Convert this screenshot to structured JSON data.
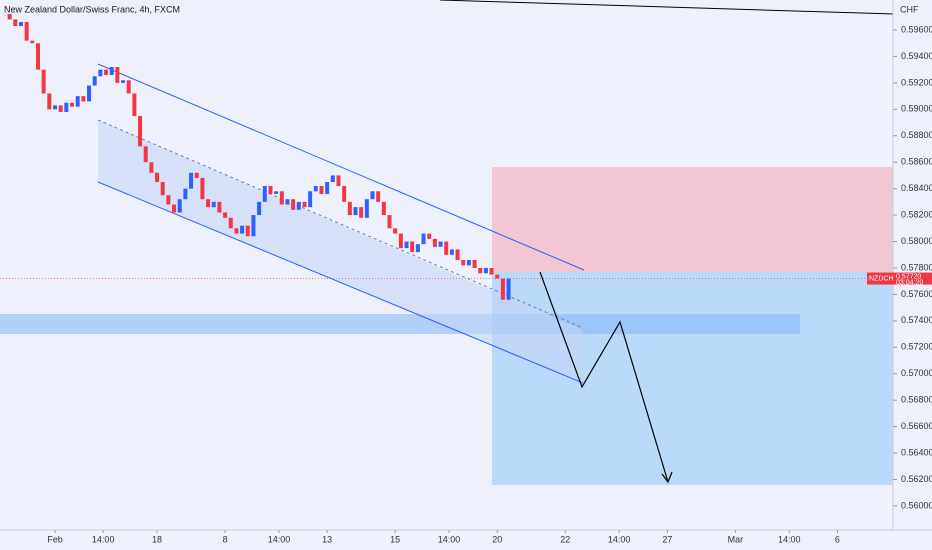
{
  "chart_data": {
    "type": "candlestick",
    "title": "New Zealand Dollar/Swiss Franc, 4h, FXCM",
    "currency": "CHF",
    "symbol": "NZDCHF",
    "last_price": {
      "value": 0.5772,
      "label": "0.57720"
    },
    "countdown": "03:04:20",
    "up_color": "#2962ff",
    "down_color": "#f23645",
    "x": [
      -8,
      -7,
      -6,
      -5,
      -4,
      -3,
      -2,
      -1,
      0,
      1,
      2,
      3,
      4,
      5,
      6,
      7,
      8,
      9,
      10,
      11,
      12,
      13,
      14,
      15,
      16,
      17,
      18,
      19,
      20,
      21,
      22,
      23,
      24,
      25,
      26,
      27,
      28,
      29,
      30,
      31,
      32,
      33,
      34,
      35,
      36,
      37,
      38,
      39,
      40,
      41,
      42,
      43,
      44,
      45,
      46,
      47,
      48,
      49,
      50,
      51,
      52,
      53,
      54,
      55,
      56,
      57,
      58,
      59,
      60,
      61,
      62,
      63,
      64,
      65,
      66,
      67,
      68,
      69,
      70,
      71,
      72,
      73,
      74,
      75,
      76,
      77,
      78,
      79,
      80
    ],
    "open": [
      0.5972,
      0.5968,
      0.5963,
      0.5966,
      0.5952,
      0.595,
      0.593,
      0.5912,
      0.59,
      0.5903,
      0.5898,
      0.5905,
      0.5902,
      0.591,
      0.5906,
      0.5918,
      0.5925,
      0.593,
      0.5926,
      0.5932,
      0.592,
      0.5922,
      0.5912,
      0.5895,
      0.5872,
      0.586,
      0.5852,
      0.5845,
      0.5835,
      0.5828,
      0.5822,
      0.5832,
      0.584,
      0.5852,
      0.5848,
      0.5832,
      0.5826,
      0.583,
      0.5822,
      0.5818,
      0.581,
      0.5806,
      0.5812,
      0.5804,
      0.582,
      0.583,
      0.5842,
      0.5836,
      0.5838,
      0.5828,
      0.5832,
      0.5824,
      0.583,
      0.5826,
      0.5838,
      0.5842,
      0.5836,
      0.5845,
      0.585,
      0.5842,
      0.583,
      0.582,
      0.5826,
      0.5818,
      0.5832,
      0.5838,
      0.583,
      0.582,
      0.581,
      0.5806,
      0.5795,
      0.58,
      0.5792,
      0.5798,
      0.5806,
      0.5802,
      0.5796,
      0.58,
      0.579,
      0.5794,
      0.5786,
      0.5782,
      0.5786,
      0.578,
      0.5776,
      0.578,
      0.5775,
      0.5772,
      0.5756
    ],
    "close": [
      0.5968,
      0.5963,
      0.5966,
      0.5952,
      0.595,
      0.593,
      0.5912,
      0.59,
      0.5903,
      0.5898,
      0.5905,
      0.5902,
      0.591,
      0.5906,
      0.5918,
      0.5925,
      0.593,
      0.5926,
      0.5932,
      0.592,
      0.5922,
      0.5912,
      0.5895,
      0.5872,
      0.586,
      0.5852,
      0.5845,
      0.5835,
      0.5828,
      0.5822,
      0.5832,
      0.584,
      0.5852,
      0.5848,
      0.5832,
      0.5826,
      0.583,
      0.5822,
      0.5818,
      0.581,
      0.5806,
      0.5812,
      0.5804,
      0.582,
      0.583,
      0.5842,
      0.5836,
      0.5838,
      0.5828,
      0.5832,
      0.5824,
      0.583,
      0.5826,
      0.5838,
      0.5842,
      0.5836,
      0.5845,
      0.585,
      0.5842,
      0.583,
      0.582,
      0.5826,
      0.5818,
      0.5832,
      0.5838,
      0.583,
      0.582,
      0.581,
      0.5806,
      0.5795,
      0.58,
      0.5792,
      0.5798,
      0.5806,
      0.5802,
      0.5796,
      0.58,
      0.579,
      0.5794,
      0.5786,
      0.5782,
      0.5786,
      0.578,
      0.5776,
      0.578,
      0.5775,
      0.5772,
      0.5756,
      0.5772
    ],
    "xlim": [
      -9.7,
      147.8
    ],
    "xticks": [
      {
        "value": 0,
        "label": "Feb"
      },
      {
        "value": 8.5,
        "label": "14:00"
      },
      18,
      {
        "value": 30,
        "label": "8"
      },
      {
        "value": 39.5,
        "label": "14:00"
      },
      {
        "value": 48,
        "label": "13"
      },
      {
        "value": 60,
        "label": "15"
      },
      {
        "value": 69.5,
        "label": "14:00"
      },
      {
        "value": 78,
        "label": "20"
      },
      {
        "value": 90,
        "label": "22"
      },
      {
        "value": 99.5,
        "label": "14:00"
      },
      {
        "value": 108,
        "label": "27"
      },
      {
        "value": 120,
        "label": "Mar"
      },
      {
        "value": 129.5,
        "label": "14:00"
      },
      {
        "value": 138,
        "label": "6"
      }
    ],
    "ylim": [
      0.55818,
      0.59827
    ],
    "yticks": [
      {
        "value": 0.596,
        "label": "0.59600"
      },
      {
        "value": 0.594,
        "label": "0.59400"
      },
      {
        "value": 0.592,
        "label": "0.59200"
      },
      {
        "value": 0.59,
        "label": "0.59000"
      },
      {
        "value": 0.588,
        "label": "0.58800"
      },
      {
        "value": 0.586,
        "label": "0.58600"
      },
      {
        "value": 0.584,
        "label": "0.58400"
      },
      {
        "value": 0.582,
        "label": "0.58200"
      },
      {
        "value": 0.58,
        "label": "0.58000"
      },
      {
        "value": 0.578,
        "label": "0.57800"
      },
      {
        "value": 0.576,
        "label": "0.57600"
      },
      {
        "value": 0.574,
        "label": "0.57400"
      },
      {
        "value": 0.572,
        "label": "0.57200"
      },
      {
        "value": 0.57,
        "label": "0.57000"
      },
      {
        "value": 0.568,
        "label": "0.56800"
      },
      {
        "value": 0.566,
        "label": "0.56600"
      },
      {
        "value": 0.564,
        "label": "0.56400"
      },
      {
        "value": 0.562,
        "label": "0.56200"
      },
      {
        "value": 0.56,
        "label": "0.56000"
      }
    ]
  }
}
